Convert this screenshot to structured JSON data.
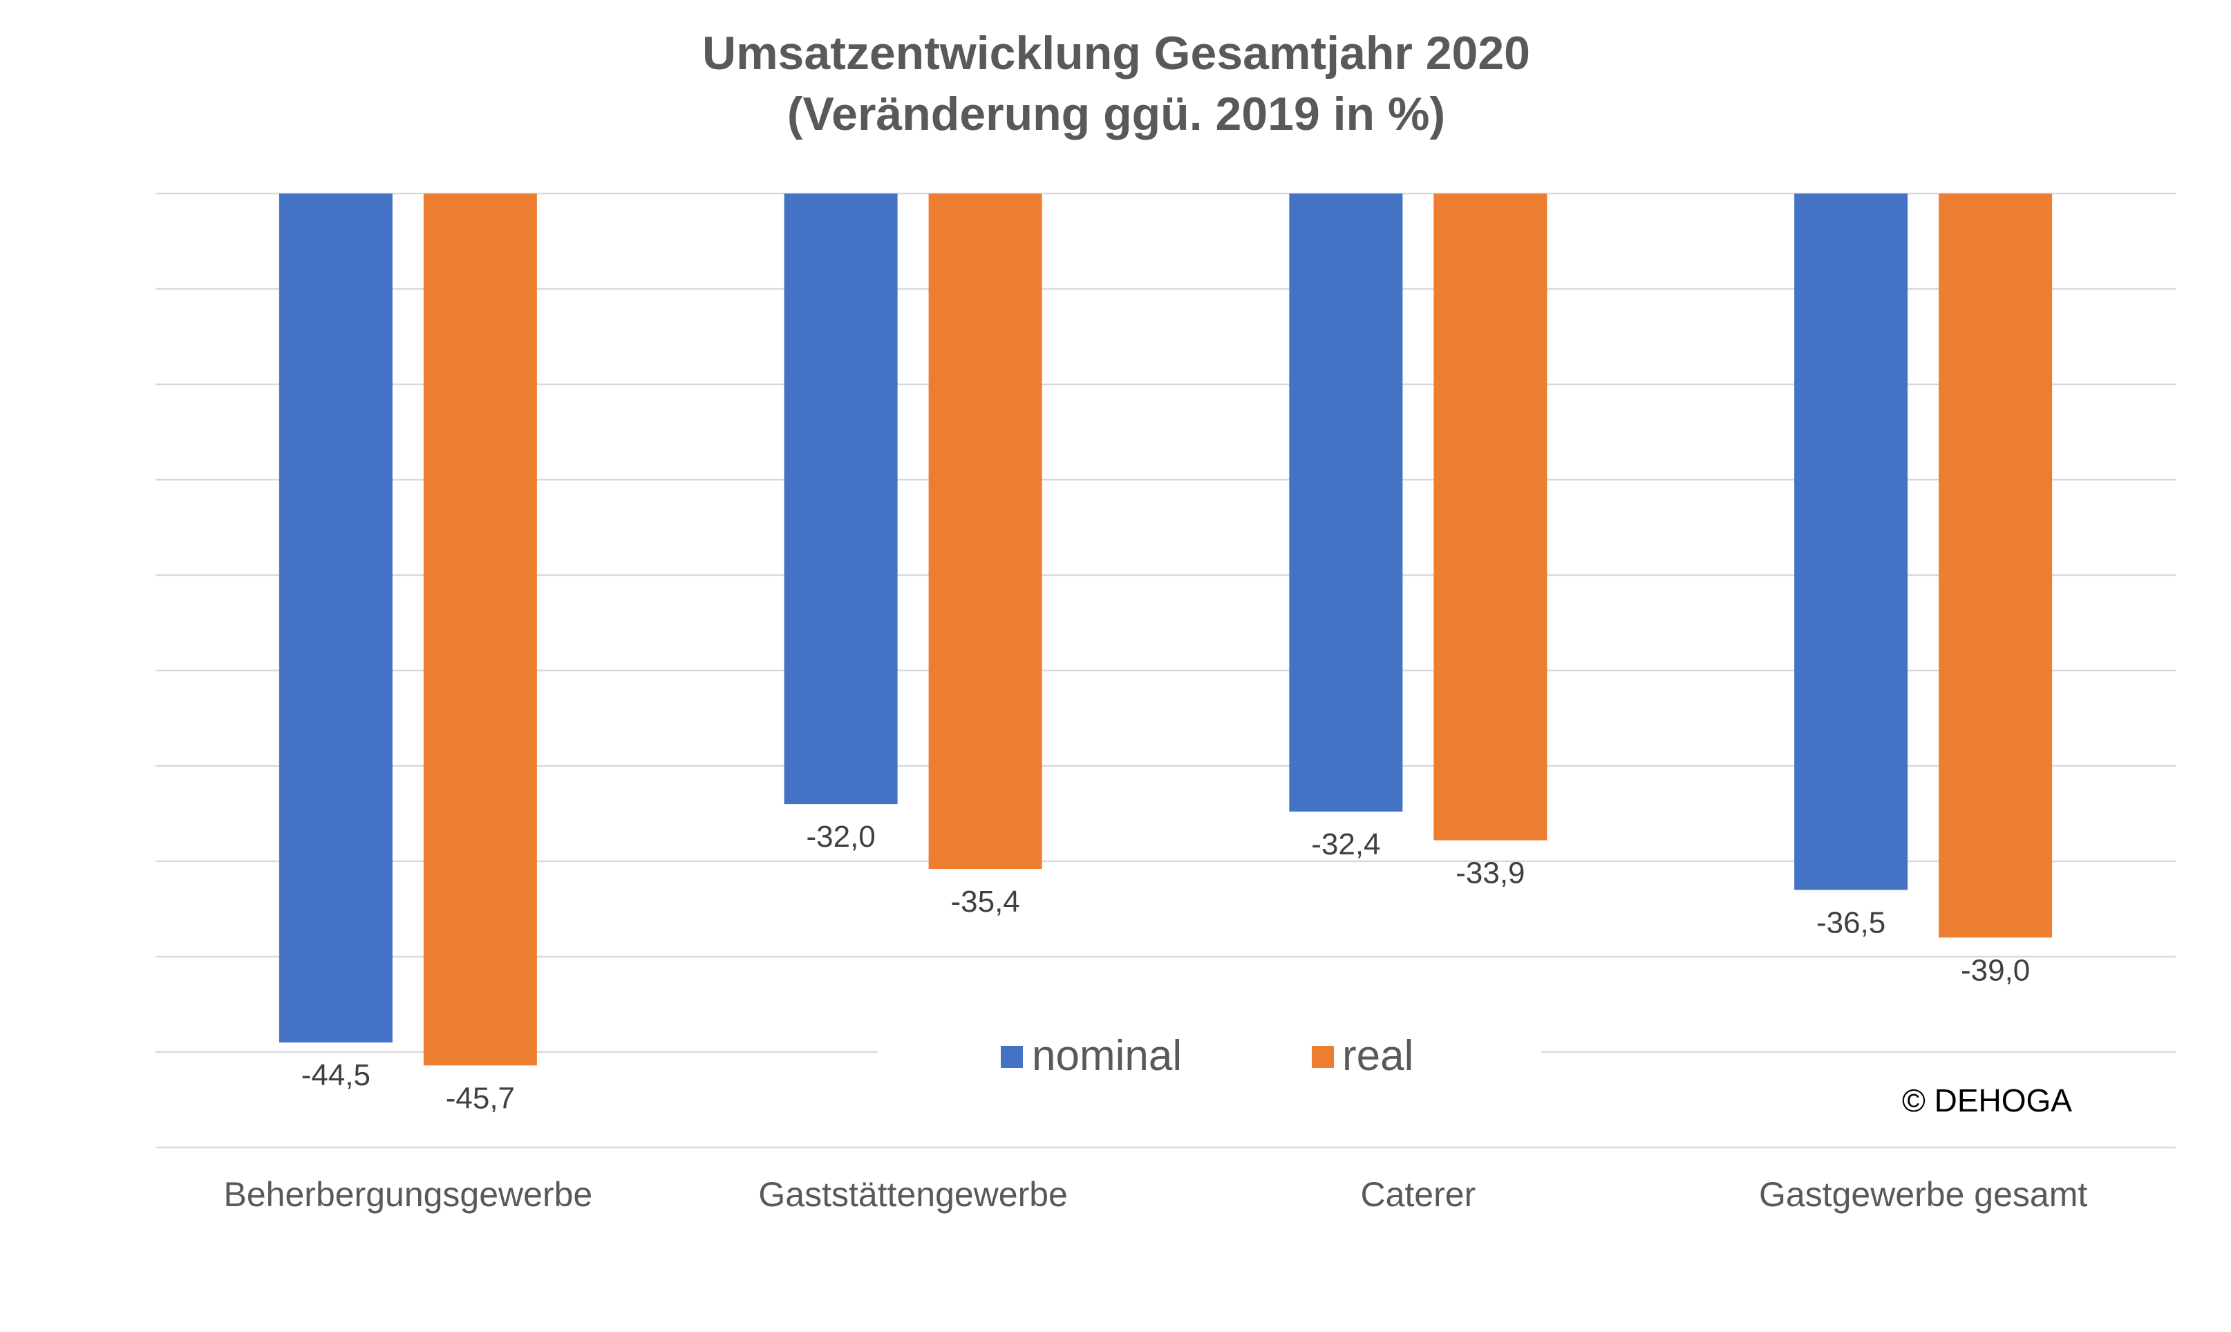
{
  "chart_data": {
    "type": "bar",
    "title": "Umsatzentwicklung Gesamtjahr 2020",
    "subtitle": "(Veränderung ggü. 2019 in %)",
    "categories": [
      "Beherbergungsgewerbe",
      "Gaststättengewerbe",
      "Caterer",
      "Gastgewerbe gesamt"
    ],
    "series": [
      {
        "name": "nominal",
        "values": [
          -44.5,
          -32.0,
          -32.4,
          -36.5
        ],
        "labels": [
          "-44,5",
          "-32,0",
          "-32,4",
          "-36,5"
        ],
        "color": "#4472c4"
      },
      {
        "name": "real",
        "values": [
          -45.7,
          -35.4,
          -33.9,
          -39.0
        ],
        "labels": [
          "-45,7",
          "-35,4",
          "-33,9",
          "-39,0"
        ],
        "color": "#ed7d31"
      }
    ],
    "ylim": [
      -50,
      0
    ],
    "grid": true,
    "legend_position": "bottom-center",
    "xlabel": "",
    "ylabel": ""
  },
  "copyright": "© DEHOGA"
}
